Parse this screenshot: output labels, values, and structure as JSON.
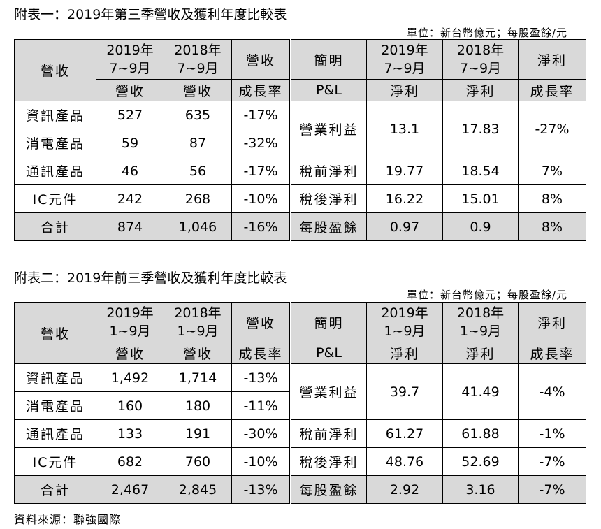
{
  "table1": {
    "title": "附表一：2019年第三季營收及獲利年度比較表",
    "unit": "單位：新台幣億元；每股盈餘/元",
    "header": {
      "left_label": "營收",
      "col2019_line1": "2019年",
      "col2019_line2": "7~9月",
      "col2018_line1": "2018年",
      "col2018_line2": "7~9月",
      "rev_growth_top": "營收",
      "right_label": "簡明",
      "col2019b_line1": "2019年",
      "col2019b_line2": "7~9月",
      "col2018b_line1": "2018年",
      "col2018b_line2": "7~9月",
      "net_top": "淨利"
    },
    "subheader": {
      "rev2019": "營收",
      "rev2018": "營收",
      "growth": "成長率",
      "pl": "P&L",
      "net2019": "淨利",
      "net2018": "淨利",
      "net_growth": "成長率"
    },
    "rows": [
      {
        "label": "資訊產品",
        "y2019": "527",
        "y2018": "635",
        "growth": "-17%"
      },
      {
        "label": "消電產品",
        "y2019": "59",
        "y2018": "87",
        "growth": "-32%"
      },
      {
        "label": "通訊產品",
        "y2019": "46",
        "y2018": "56",
        "growth": "-17%"
      },
      {
        "label": "IC元件",
        "y2019": "242",
        "y2018": "268",
        "growth": "-10%"
      },
      {
        "label": "合計",
        "y2019": "874",
        "y2018": "1,046",
        "growth": "-16%"
      }
    ],
    "pl_rows": [
      {
        "label": "營業利益",
        "y2019": "13.1",
        "y2018": "17.83",
        "growth": "-27%"
      },
      {
        "label": "稅前淨利",
        "y2019": "19.77",
        "y2018": "18.54",
        "growth": "7%"
      },
      {
        "label": "稅後淨利",
        "y2019": "16.22",
        "y2018": "15.01",
        "growth": "8%"
      },
      {
        "label": "每股盈餘",
        "y2019": "0.97",
        "y2018": "0.9",
        "growth": "8%"
      }
    ]
  },
  "table2": {
    "title": "附表二：2019年前三季營收及獲利年度比較表",
    "unit": "單位：新台幣億元；每股盈餘/元",
    "header": {
      "left_label": "營收",
      "col2019_line1": "2019年",
      "col2019_line2": "1~9月",
      "col2018_line1": "2018年",
      "col2018_line2": "1~9月",
      "rev_growth_top": "營收",
      "right_label": "簡明",
      "col2019b_line1": "2019年",
      "col2019b_line2": "1~9月",
      "col2018b_line1": "2018年",
      "col2018b_line2": "1~9月",
      "net_top": "淨利"
    },
    "subheader": {
      "rev2019": "營收",
      "rev2018": "營收",
      "growth": "成長率",
      "pl": "P&L",
      "net2019": "淨利",
      "net2018": "淨利",
      "net_growth": "成長率"
    },
    "rows": [
      {
        "label": "資訊產品",
        "y2019": "1,492",
        "y2018": "1,714",
        "growth": "-13%"
      },
      {
        "label": "消電產品",
        "y2019": "160",
        "y2018": "180",
        "growth": "-11%"
      },
      {
        "label": "通訊產品",
        "y2019": "133",
        "y2018": "191",
        "growth": "-30%"
      },
      {
        "label": "IC元件",
        "y2019": "682",
        "y2018": "760",
        "growth": "-10%"
      },
      {
        "label": "合計",
        "y2019": "2,467",
        "y2018": "2,845",
        "growth": "-13%"
      }
    ],
    "pl_rows": [
      {
        "label": "營業利益",
        "y2019": "39.7",
        "y2018": "41.49",
        "growth": "-4%"
      },
      {
        "label": "稅前淨利",
        "y2019": "61.27",
        "y2018": "61.88",
        "growth": "-1%"
      },
      {
        "label": "稅後淨利",
        "y2019": "48.76",
        "y2018": "52.69",
        "growth": "-7%"
      },
      {
        "label": "每股盈餘",
        "y2019": "2.92",
        "y2018": "3.16",
        "growth": "-7%"
      }
    ]
  },
  "source_note": "資料來源：聯強國際",
  "colors": {
    "header_shade": "#d9d9d9",
    "border": "#000000"
  }
}
